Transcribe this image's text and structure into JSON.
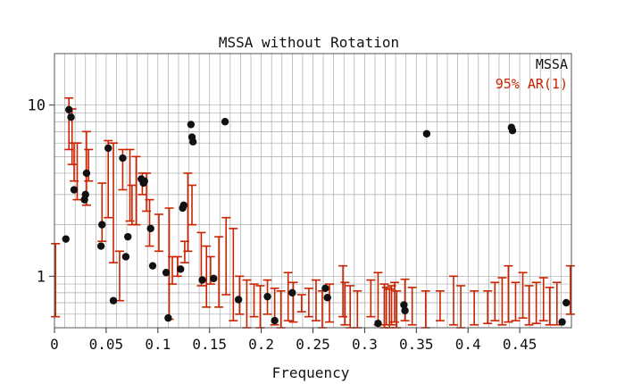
{
  "chart_data": {
    "type": "scatter",
    "title": "MSSA without Rotation",
    "xlabel": "Frequency",
    "ylabel": "",
    "xlim": [
      0,
      0.5
    ],
    "ylim": [
      0.5,
      20
    ],
    "yscale": "log",
    "grid": true,
    "legend_position": "top-right",
    "x_ticks": [
      0,
      0.05,
      0.1,
      0.15,
      0.2,
      0.25,
      0.3,
      0.35,
      0.4,
      0.45
    ],
    "x_tick_labels": [
      "0",
      "0.05",
      "0.1",
      "0.15",
      "0.2",
      "0.25",
      "0.3",
      "0.35",
      "0.4",
      "0.45"
    ],
    "y_ticks": [
      1,
      10
    ],
    "y_tick_labels": [
      "1",
      "10"
    ],
    "colors": {
      "points": "#111111",
      "bars": "#cc2200",
      "grid": "#aaaaaa"
    },
    "series": [
      {
        "name": "MSSA",
        "kind": "points",
        "x": [
          0.011,
          0.014,
          0.016,
          0.019,
          0.029,
          0.03,
          0.031,
          0.045,
          0.046,
          0.052,
          0.057,
          0.066,
          0.069,
          0.071,
          0.084,
          0.086,
          0.087,
          0.093,
          0.095,
          0.108,
          0.11,
          0.122,
          0.124,
          0.125,
          0.132,
          0.133,
          0.134,
          0.143,
          0.154,
          0.165,
          0.178,
          0.206,
          0.213,
          0.23,
          0.262,
          0.264,
          0.313,
          0.338,
          0.339,
          0.36,
          0.442,
          0.443,
          0.495,
          0.491
        ],
        "y": [
          1.65,
          9.4,
          8.5,
          3.2,
          2.8,
          3.0,
          4.0,
          1.5,
          2.0,
          5.6,
          0.72,
          4.9,
          1.3,
          1.7,
          3.7,
          3.5,
          3.6,
          1.9,
          1.15,
          1.05,
          0.57,
          1.1,
          2.5,
          2.6,
          7.7,
          6.5,
          6.1,
          0.95,
          0.97,
          8.0,
          0.73,
          0.76,
          0.55,
          0.8,
          0.85,
          0.75,
          0.53,
          0.68,
          0.63,
          6.8,
          7.4,
          7.1,
          0.7,
          0.54
        ]
      },
      {
        "name": "95% AR(1)",
        "kind": "error-bars",
        "x": [
          0.001,
          0.014,
          0.017,
          0.019,
          0.022,
          0.031,
          0.033,
          0.046,
          0.052,
          0.057,
          0.063,
          0.066,
          0.073,
          0.075,
          0.079,
          0.085,
          0.089,
          0.092,
          0.101,
          0.111,
          0.114,
          0.119,
          0.126,
          0.129,
          0.133,
          0.142,
          0.147,
          0.151,
          0.159,
          0.166,
          0.173,
          0.179,
          0.186,
          0.193,
          0.199,
          0.206,
          0.213,
          0.219,
          0.226,
          0.231,
          0.239,
          0.246,
          0.253,
          0.259,
          0.266,
          0.279,
          0.281,
          0.286,
          0.293,
          0.306,
          0.313,
          0.319,
          0.321,
          0.324,
          0.326,
          0.329,
          0.331,
          0.339,
          0.346,
          0.359,
          0.373,
          0.386,
          0.393,
          0.406,
          0.419,
          0.426,
          0.433,
          0.439,
          0.446,
          0.453,
          0.459,
          0.466,
          0.473,
          0.479,
          0.486,
          0.499
        ],
        "lo": [
          0.58,
          5.5,
          4.5,
          3.6,
          2.8,
          2.6,
          3.6,
          1.6,
          2.2,
          1.2,
          0.72,
          3.2,
          2.1,
          2.0,
          2.0,
          3.0,
          2.4,
          1.5,
          1.4,
          0.56,
          0.9,
          1.0,
          1.2,
          1.4,
          2.0,
          0.88,
          0.66,
          0.9,
          0.66,
          0.78,
          0.55,
          0.6,
          0.5,
          0.58,
          0.5,
          0.6,
          0.52,
          0.5,
          0.55,
          0.54,
          0.62,
          0.58,
          0.55,
          0.5,
          0.54,
          0.58,
          0.52,
          0.5,
          0.5,
          0.58,
          0.52,
          0.5,
          0.52,
          0.5,
          0.52,
          0.54,
          0.5,
          0.55,
          0.52,
          0.5,
          0.55,
          0.52,
          0.5,
          0.52,
          0.53,
          0.55,
          0.52,
          0.54,
          0.55,
          0.57,
          0.52,
          0.53,
          0.55,
          0.52,
          0.52,
          0.6
        ],
        "hi": [
          1.55,
          11.0,
          9.5,
          6.0,
          6.0,
          7.0,
          5.5,
          3.5,
          6.2,
          6.0,
          1.4,
          5.5,
          5.5,
          3.4,
          5.0,
          4.0,
          4.0,
          2.8,
          2.3,
          2.5,
          1.3,
          1.3,
          1.6,
          4.0,
          3.4,
          1.8,
          1.5,
          1.3,
          1.7,
          2.2,
          1.9,
          1.0,
          0.95,
          0.9,
          0.88,
          0.95,
          0.85,
          0.82,
          1.05,
          0.92,
          0.78,
          0.85,
          0.95,
          0.82,
          0.9,
          1.15,
          0.92,
          0.88,
          0.82,
          0.95,
          1.05,
          0.9,
          0.86,
          0.84,
          0.88,
          0.92,
          0.82,
          0.96,
          0.86,
          0.82,
          0.82,
          1.0,
          0.88,
          0.82,
          0.82,
          0.92,
          0.98,
          1.15,
          0.92,
          1.05,
          0.88,
          0.92,
          0.98,
          0.86,
          0.92,
          1.15
        ]
      }
    ]
  }
}
